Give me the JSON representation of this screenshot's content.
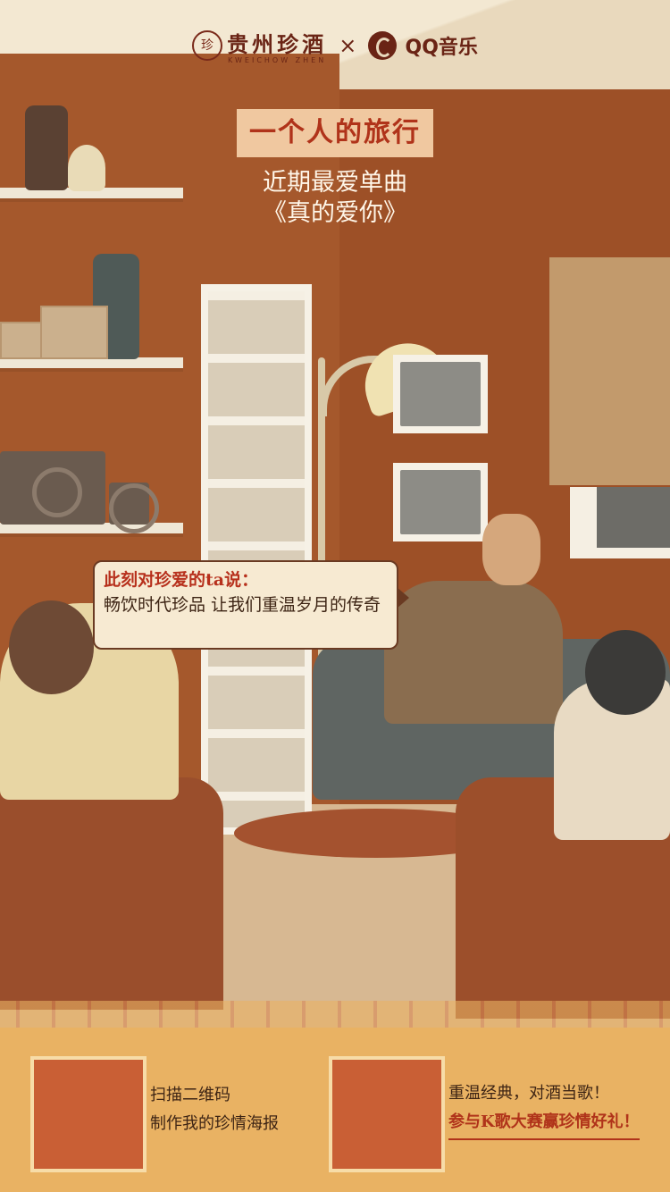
{
  "header": {
    "brand_left_cn": "贵州珍酒",
    "brand_left_en": "KWEICHOW ZHEN",
    "brand_left_seal": "珍",
    "separator": "×",
    "brand_right": "QQ音乐"
  },
  "hero": {
    "title": "一个人的旅行",
    "subtitle_line1": "近期最爱单曲",
    "subtitle_line2": "《真的爱你》"
  },
  "speech_bubble": {
    "heading": "此刻对珍爱的ta说：",
    "body": "畅饮时代珍品 让我们重温岁月的传奇"
  },
  "footer": {
    "left": {
      "line1": "扫描二维码",
      "line2": "制作我的珍情海报"
    },
    "right": {
      "line1": "重温经典，对酒当歌！",
      "line2": "参与K歌大赛赢珍情好礼！"
    }
  },
  "colors": {
    "accent_red": "#b0331a",
    "brand_dark": "#6a2415",
    "footer_bg": "#e9b263",
    "qr_placeholder": "#c95f35"
  }
}
